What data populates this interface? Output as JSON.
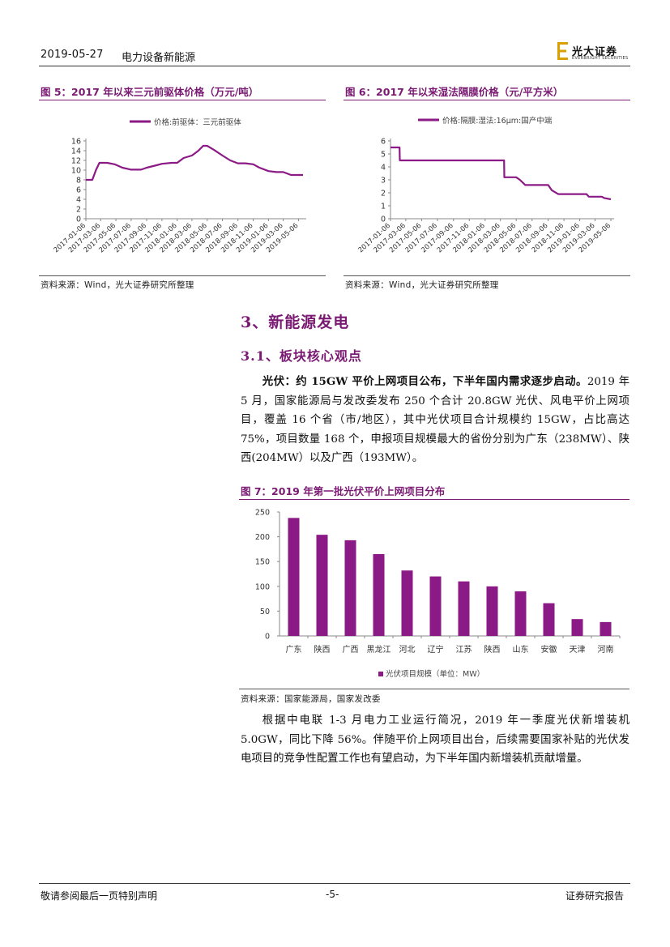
{
  "header": {
    "date": "2019-05-27",
    "sector": "电力设备新能源",
    "logo_cn": "光大证券",
    "logo_en": "EVERBRIGHT SECURITIES"
  },
  "fig5": {
    "title": "图 5：2017 年以来三元前驱体价格（万元/吨）",
    "source": "资料来源：Wind，光大证券研究所整理"
  },
  "fig6": {
    "title": "图 6：2017 年以来湿法隔膜价格（元/平方米）",
    "source": "资料来源：Wind，光大证券研究所整理"
  },
  "fig7": {
    "title": "图 7：2019 年第一批光伏平价上网项目分布",
    "source": "资料来源：国家能源局，国家发改委"
  },
  "section": {
    "h1": "3、新能源发电",
    "h2": "3.1、板块核心观点"
  },
  "para1": {
    "lead": "光伏：约 15GW 平价上网项目公布，下半年国内需求逐步启动。",
    "body": "2019 年 5 月，国家能源局与发改委发布 250 个合计 20.8GW 光伏、风电平价上网项目，覆盖 16 个省（市/地区），其中光伏项目合计规模约 15GW，占比高达 75%，项目数量 168 个，申报项目规模最大的省份分别为广东（238MW）、陕西(204MW）以及广西（193MW）。"
  },
  "para2": {
    "body": "根据中电联 1-3 月电力工业运行简况，2019 年一季度光伏新增装机 5.0GW，同比下降 56%。伴随平价上网项目出台，后续需要国家补贴的光伏发电项目的竞争性配置工作也有望启动，为下半年国内新增装机贡献增量。"
  },
  "footer": {
    "left": "敬请参阅最后一页特别声明",
    "page": "-5-",
    "right": "证券研究报告"
  },
  "colors": {
    "accent": "#7a1a73",
    "series": "#8b1a86"
  },
  "chart_data": [
    {
      "id": "fig5",
      "type": "line",
      "legend": "价格:前驱体：三元前驱体",
      "legend_position": "top",
      "ylim": [
        0,
        16
      ],
      "yticks": [
        0,
        2,
        4,
        6,
        8,
        10,
        12,
        14,
        16
      ],
      "xticks": [
        "2017-01-06",
        "2017-03-06",
        "2017-05-06",
        "2017-07-06",
        "2017-09-06",
        "2017-11-06",
        "2018-01-06",
        "2018-03-06",
        "2018-05-06",
        "2018-07-06",
        "2018-09-06",
        "2018-11-06",
        "2019-01-06",
        "2019-03-06",
        "2019-05-06"
      ],
      "grid": false,
      "points": [
        [
          "2017-01-06",
          8.0
        ],
        [
          "2017-02-01",
          8.0
        ],
        [
          "2017-02-15",
          10.0
        ],
        [
          "2017-03-01",
          11.5
        ],
        [
          "2017-04-01",
          11.5
        ],
        [
          "2017-05-01",
          11.2
        ],
        [
          "2017-06-01",
          10.5
        ],
        [
          "2017-07-06",
          10.1
        ],
        [
          "2017-08-15",
          10.1
        ],
        [
          "2017-09-06",
          10.5
        ],
        [
          "2017-10-15",
          11.0
        ],
        [
          "2017-11-06",
          11.3
        ],
        [
          "2017-12-15",
          11.5
        ],
        [
          "2018-01-06",
          11.5
        ],
        [
          "2018-02-01",
          12.5
        ],
        [
          "2018-03-06",
          13.0
        ],
        [
          "2018-04-01",
          14.0
        ],
        [
          "2018-04-20",
          15.0
        ],
        [
          "2018-05-06",
          15.0
        ],
        [
          "2018-06-01",
          14.2
        ],
        [
          "2018-07-06",
          13.0
        ],
        [
          "2018-08-06",
          12.0
        ],
        [
          "2018-09-06",
          11.4
        ],
        [
          "2018-10-06",
          11.4
        ],
        [
          "2018-11-06",
          11.2
        ],
        [
          "2018-12-01",
          10.5
        ],
        [
          "2019-01-06",
          9.8
        ],
        [
          "2019-02-06",
          9.6
        ],
        [
          "2019-03-06",
          9.6
        ],
        [
          "2019-04-06",
          9.0
        ],
        [
          "2019-05-06",
          9.0
        ],
        [
          "2019-05-24",
          9.0
        ]
      ]
    },
    {
      "id": "fig6",
      "type": "line",
      "legend": "价格:隔膜:湿法:16μm:国产中端",
      "legend_position": "top",
      "ylim": [
        0,
        6
      ],
      "yticks": [
        0,
        1,
        2,
        3,
        4,
        5,
        6
      ],
      "xticks": [
        "2017-01-06",
        "2017-03-06",
        "2017-05-06",
        "2017-07-06",
        "2017-09-06",
        "2017-11-06",
        "2018-01-06",
        "2018-03-06",
        "2018-05-06",
        "2018-07-06",
        "2018-09-06",
        "2018-11-06",
        "2019-01-06",
        "2019-03-06",
        "2019-05-06"
      ],
      "grid": false,
      "points": [
        [
          "2017-01-06",
          5.5
        ],
        [
          "2017-02-10",
          5.5
        ],
        [
          "2017-02-11",
          4.5
        ],
        [
          "2018-03-20",
          4.5
        ],
        [
          "2018-03-21",
          3.2
        ],
        [
          "2018-05-06",
          3.2
        ],
        [
          "2018-05-20",
          3.0
        ],
        [
          "2018-06-10",
          2.6
        ],
        [
          "2018-09-06",
          2.6
        ],
        [
          "2018-09-20",
          2.2
        ],
        [
          "2018-10-15",
          1.9
        ],
        [
          "2019-02-01",
          1.9
        ],
        [
          "2019-02-10",
          1.7
        ],
        [
          "2019-04-01",
          1.7
        ],
        [
          "2019-04-10",
          1.6
        ],
        [
          "2019-05-06",
          1.5
        ]
      ]
    },
    {
      "id": "fig7",
      "type": "bar",
      "legend": "光伏项目规模（单位：MW）",
      "legend_position": "bottom",
      "ylim": [
        0,
        250
      ],
      "yticks": [
        0,
        50,
        100,
        150,
        200,
        250
      ],
      "categories": [
        "广东",
        "陕西",
        "广西",
        "黑龙江",
        "河北",
        "辽宁",
        "江苏",
        "陕西",
        "山东",
        "安徽",
        "天津",
        "河南"
      ],
      "values": [
        238,
        204,
        193,
        165,
        132,
        120,
        110,
        100,
        90,
        66,
        34,
        28
      ],
      "grid": false
    }
  ]
}
